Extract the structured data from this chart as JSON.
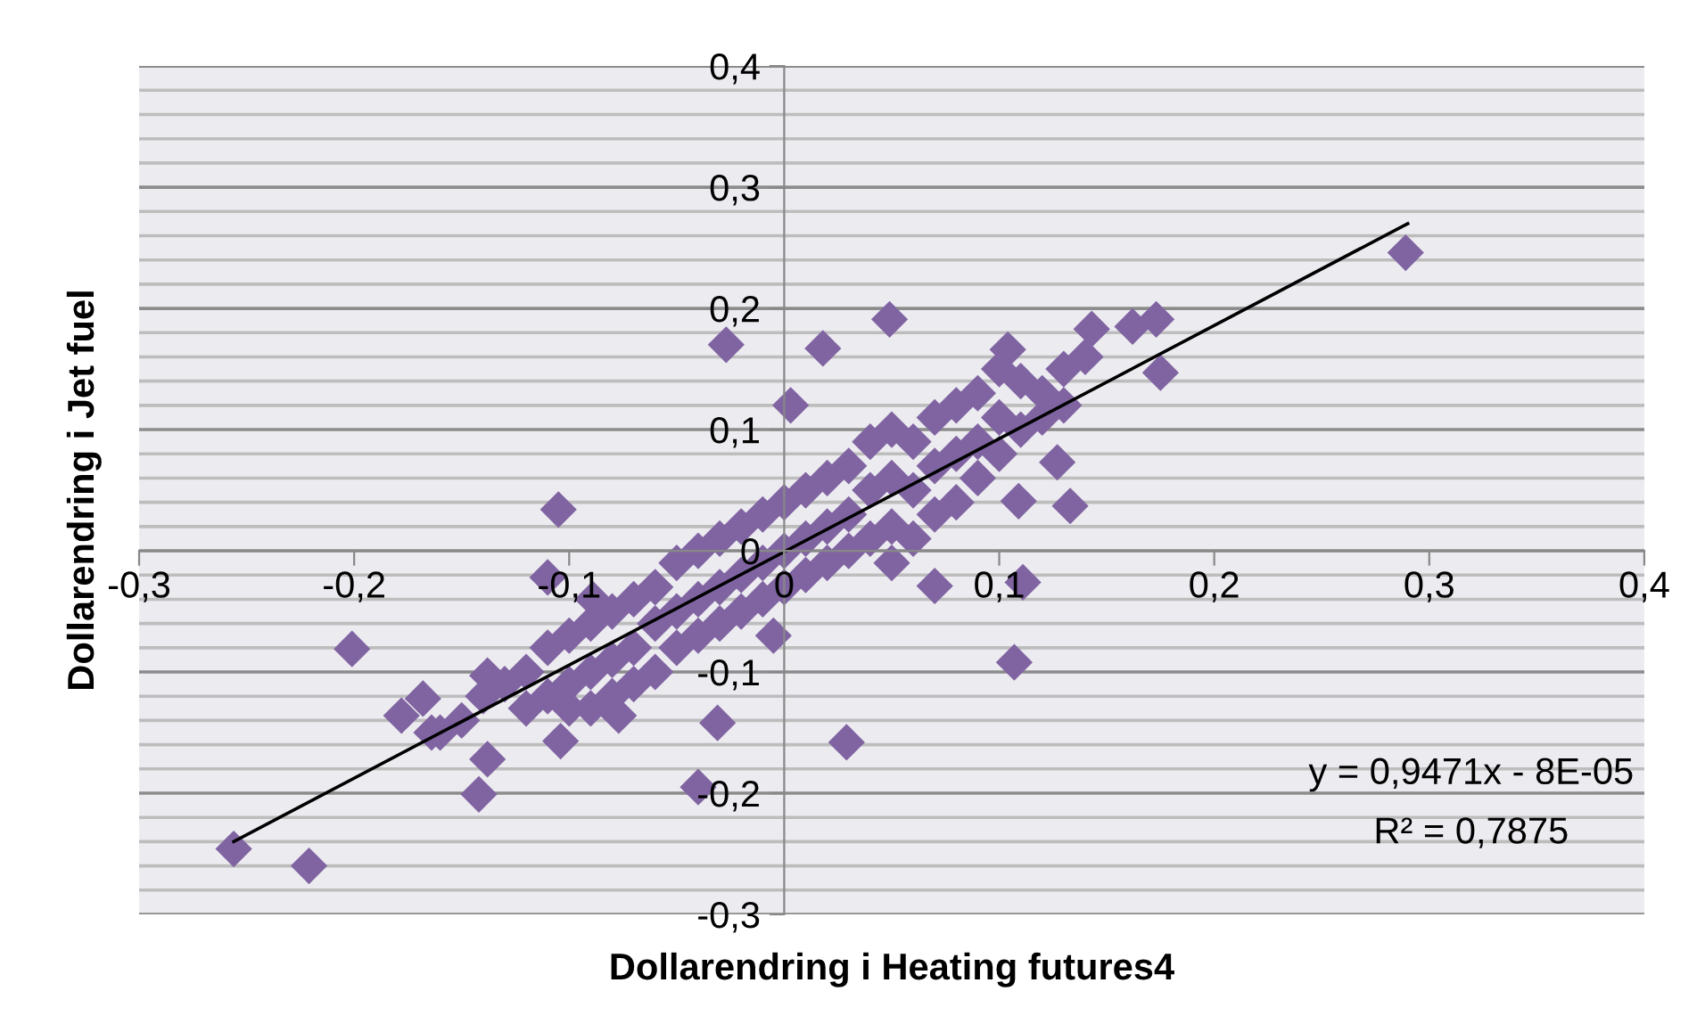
{
  "chart_data": {
    "type": "scatter",
    "xlabel": "Dollarendring i Heating futures4",
    "ylabel": "Dollarendring i Jet fuel",
    "annotations": [
      "y = 0,9471x - 8E-05",
      "R² = 0,7875"
    ],
    "xlim": [
      -0.3,
      0.4
    ],
    "ylim": [
      -0.3,
      0.4
    ],
    "xticks": [
      {
        "value": -0.3,
        "label": "-0,3"
      },
      {
        "value": -0.2,
        "label": "-0,2"
      },
      {
        "value": -0.1,
        "label": "-0,1"
      },
      0,
      {
        "value": 0.1,
        "label": "0,1"
      },
      {
        "value": 0.2,
        "label": "0,2"
      },
      {
        "value": 0.3,
        "label": "0,3"
      },
      {
        "value": 0.4,
        "label": "0,4"
      }
    ],
    "yticks": [
      {
        "value": -0.3,
        "label": "-0,3"
      },
      {
        "value": -0.28,
        "label": null
      },
      {
        "value": -0.26,
        "label": null
      },
      {
        "value": -0.24,
        "label": null
      },
      {
        "value": -0.22,
        "label": null
      },
      {
        "value": -0.2,
        "label": "-0,2"
      },
      {
        "value": -0.18,
        "label": null
      },
      {
        "value": -0.16,
        "label": null
      },
      {
        "value": -0.14,
        "label": null
      },
      {
        "value": -0.12,
        "label": null
      },
      {
        "value": -0.1,
        "label": "-0,1"
      },
      {
        "value": -0.08,
        "label": null
      },
      {
        "value": -0.06,
        "label": null
      },
      {
        "value": -0.04,
        "label": null
      },
      {
        "value": -0.02,
        "label": null
      },
      0,
      {
        "value": 0.02,
        "label": null
      },
      {
        "value": 0.04,
        "label": null
      },
      {
        "value": 0.06,
        "label": null
      },
      {
        "value": 0.08,
        "label": null
      },
      {
        "value": 0.1,
        "label": "0,1"
      },
      {
        "value": 0.12,
        "label": null
      },
      {
        "value": 0.14,
        "label": null
      },
      {
        "value": 0.16,
        "label": null
      },
      {
        "value": 0.18,
        "label": null
      },
      {
        "value": 0.2,
        "label": "0,2"
      },
      {
        "value": 0.22,
        "label": null
      },
      {
        "value": 0.24,
        "label": null
      },
      {
        "value": 0.26,
        "label": null
      },
      {
        "value": 0.28,
        "label": null
      },
      {
        "value": 0.3,
        "label": "0,3"
      },
      {
        "value": 0.32,
        "label": null
      },
      {
        "value": 0.34,
        "label": null
      },
      {
        "value": 0.36,
        "label": null
      },
      {
        "value": 0.38,
        "label": null
      },
      {
        "value": 0.4,
        "label": "0,4"
      }
    ],
    "grid": "y",
    "series": [
      {
        "marker": "diamond",
        "color": "#8064a2",
        "x": [
          -0.027,
          0.018,
          0.003,
          -0.105,
          0.049,
          0.289,
          0.175,
          0.173,
          0.162,
          0.143,
          0.104,
          0.133,
          0.127,
          0.109,
          0.111,
          0.107,
          0.07,
          0.029,
          -0.256,
          -0.221,
          -0.201,
          -0.178,
          -0.168,
          -0.164,
          -0.142,
          -0.138,
          -0.138,
          -0.104,
          -0.11,
          -0.031,
          -0.04,
          -0.077,
          -0.089,
          -0.13,
          -0.12,
          -0.12,
          -0.11,
          -0.11,
          -0.1,
          -0.1,
          -0.1,
          -0.09,
          -0.09,
          -0.09,
          -0.08,
          -0.08,
          -0.08,
          -0.07,
          -0.07,
          -0.07,
          -0.06,
          -0.06,
          -0.06,
          -0.05,
          -0.05,
          -0.05,
          -0.04,
          -0.04,
          -0.04,
          -0.03,
          -0.03,
          -0.03,
          -0.02,
          -0.02,
          -0.02,
          -0.01,
          -0.01,
          -0.01,
          0.0,
          0.0,
          0.0,
          -0.005,
          0.01,
          0.01,
          0.01,
          0.02,
          0.02,
          0.02,
          0.03,
          0.03,
          0.03,
          0.04,
          0.04,
          0.04,
          0.05,
          0.05,
          0.05,
          0.05,
          0.06,
          0.06,
          0.06,
          0.07,
          0.07,
          0.07,
          0.08,
          0.08,
          0.08,
          0.09,
          0.09,
          0.09,
          0.1,
          0.1,
          0.1,
          0.11,
          0.11,
          0.12,
          0.12,
          0.13,
          0.13,
          0.14,
          -0.14,
          -0.15,
          -0.16
        ],
        "values": [
          0.17,
          0.167,
          0.12,
          0.034,
          0.191,
          0.246,
          0.147,
          0.191,
          0.185,
          0.183,
          0.166,
          0.037,
          0.073,
          0.041,
          -0.026,
          -0.092,
          -0.029,
          -0.158,
          -0.246,
          -0.26,
          -0.081,
          -0.136,
          -0.122,
          -0.15,
          -0.201,
          -0.172,
          -0.103,
          -0.157,
          -0.022,
          -0.142,
          -0.195,
          -0.136,
          -0.04,
          -0.11,
          -0.1,
          -0.13,
          -0.08,
          -0.12,
          -0.07,
          -0.11,
          -0.13,
          -0.06,
          -0.1,
          -0.13,
          -0.05,
          -0.09,
          -0.12,
          -0.04,
          -0.08,
          -0.11,
          -0.03,
          -0.06,
          -0.1,
          -0.01,
          -0.05,
          -0.08,
          0.0,
          -0.04,
          -0.07,
          0.01,
          -0.03,
          -0.06,
          0.02,
          -0.02,
          -0.05,
          0.03,
          -0.01,
          -0.04,
          0.04,
          0.0,
          -0.03,
          -0.07,
          0.05,
          0.01,
          -0.02,
          0.06,
          0.02,
          -0.01,
          0.07,
          0.03,
          0.0,
          0.09,
          0.05,
          0.01,
          0.1,
          0.06,
          0.02,
          -0.01,
          0.09,
          0.05,
          0.01,
          0.11,
          0.07,
          0.03,
          0.12,
          0.08,
          0.04,
          0.13,
          0.09,
          0.06,
          0.15,
          0.11,
          0.08,
          0.14,
          0.1,
          0.13,
          0.11,
          0.15,
          0.12,
          0.16,
          -0.12,
          -0.14,
          -0.15
        ]
      },
      {
        "type": "line",
        "color": "#000000",
        "x": [
          -0.256,
          0.29
        ],
        "values": [
          -0.24,
          0.27
        ]
      }
    ]
  }
}
